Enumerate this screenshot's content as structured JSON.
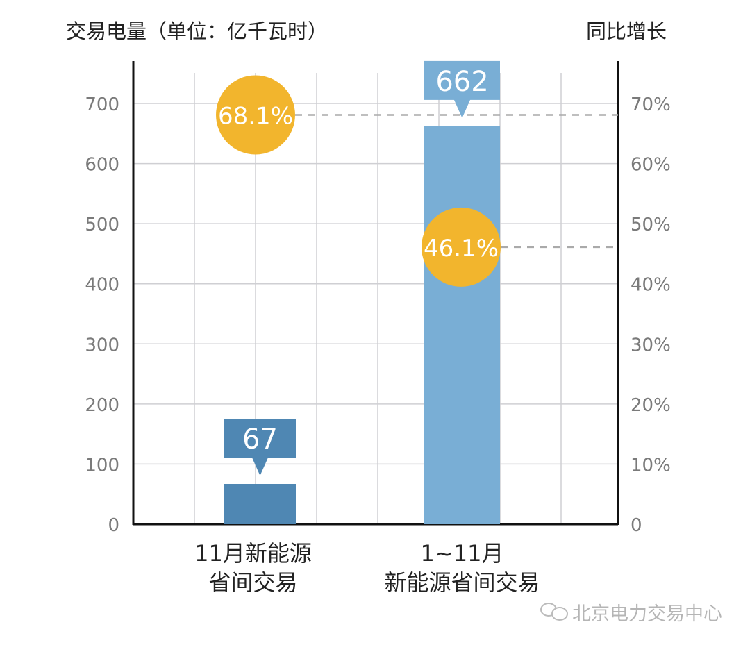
{
  "chart_data": {
    "type": "bar",
    "title": "",
    "ylabel": "交易电量（单位：亿千瓦时）",
    "y2label": "同比增长",
    "categories": [
      [
        "11月新能源",
        "省间交易"
      ],
      [
        "1~11月",
        "新能源省间交易"
      ]
    ],
    "ylim": [
      0,
      700
    ],
    "yticks": [
      "0",
      "100",
      "200",
      "300",
      "400",
      "500",
      "600",
      "700"
    ],
    "y2lim": [
      0,
      70
    ],
    "y2ticks": [
      "0",
      "10%",
      "20%",
      "30%",
      "40%",
      "50%",
      "60%",
      "70%"
    ],
    "values": [
      67,
      662
    ],
    "value_labels": [
      "67",
      "662"
    ],
    "growth": [
      68.1,
      46.1
    ],
    "growth_labels": [
      "68.1%",
      "46.1%"
    ],
    "bar_colors": [
      "#4f87b3",
      "#79aed5"
    ],
    "label_box_colors": [
      "#4f87b3",
      "#79aed5"
    ],
    "growth_color": "#f2b52d",
    "grid": true
  },
  "watermark": "北京电力交易中心"
}
